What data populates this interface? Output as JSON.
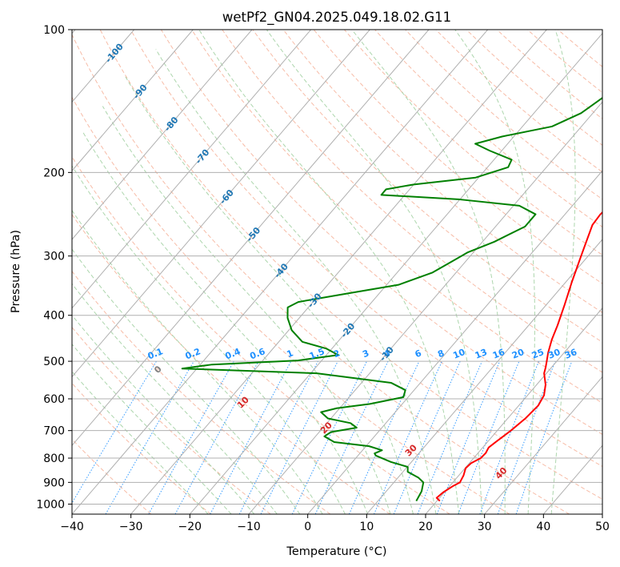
{
  "chart_data": {
    "type": "line",
    "chart_kind": "skew-T log-p diagram",
    "title": "wetPf2_GN04.2025.049.18.02.G11",
    "xlabel": "Temperature (°C)",
    "ylabel": "Pressure (hPa)",
    "xlim": [
      -40,
      50
    ],
    "ylim": [
      1050,
      100
    ],
    "y_scale": "log",
    "x_ticks": [
      -40,
      -30,
      -20,
      -10,
      0,
      10,
      20,
      30,
      40,
      50
    ],
    "y_ticks": [
      1000,
      900,
      800,
      700,
      600,
      500,
      400,
      300,
      200,
      100
    ],
    "grid": true,
    "colors": {
      "temperature": "#ff0000",
      "dewpoint": "#008000",
      "isotherm": "#b0b0b0",
      "dry_adiabat": "#f4a58a",
      "moist_adiabat": "#99cc99",
      "mixing_ratio": "#1e90ff",
      "isotherm_label": "#1f77b4",
      "dry_adiabat_label": "#d62728",
      "mixing_ratio_label": "#1e90ff",
      "lcl_label": "#808080"
    },
    "isotherm_labels": [
      "-100",
      "-90",
      "-80",
      "-70",
      "-60",
      "-50",
      "-40",
      "-30",
      "-20",
      "-10"
    ],
    "isotherm_label_values": [
      -100,
      -90,
      -80,
      -70,
      -60,
      -50,
      -40,
      -30,
      -20,
      -10
    ],
    "mixing_ratio_labels": [
      "0.1",
      "0.2",
      "0.4",
      "0.6",
      "1",
      "1.5",
      "2",
      "3",
      "4",
      "6",
      "8",
      "10",
      "13",
      "16",
      "20",
      "25",
      "30",
      "36"
    ],
    "mixing_ratio_values": [
      0.1,
      0.2,
      0.4,
      0.6,
      1,
      1.5,
      2,
      3,
      4,
      6,
      8,
      10,
      13,
      16,
      20,
      25,
      30,
      36
    ],
    "dry_adiabat_labels": [
      "0",
      "10",
      "20",
      "30",
      "40"
    ],
    "dry_adiabat_label_values": [
      0,
      10,
      20,
      30,
      40
    ],
    "series": [
      {
        "name": "Temperature",
        "points": [
          {
            "p": 985,
            "t": 20.5
          },
          {
            "p": 970,
            "t": 19.5
          },
          {
            "p": 945,
            "t": 19.8
          },
          {
            "p": 915,
            "t": 20.6
          },
          {
            "p": 900,
            "t": 21.2
          },
          {
            "p": 870,
            "t": 20.8
          },
          {
            "p": 840,
            "t": 20.1
          },
          {
            "p": 820,
            "t": 20.3
          },
          {
            "p": 800,
            "t": 21.2
          },
          {
            "p": 780,
            "t": 21.3
          },
          {
            "p": 760,
            "t": 21.0
          },
          {
            "p": 740,
            "t": 21.4
          },
          {
            "p": 700,
            "t": 22.3
          },
          {
            "p": 660,
            "t": 23.0
          },
          {
            "p": 620,
            "t": 23.3
          },
          {
            "p": 590,
            "t": 22.8
          },
          {
            "p": 560,
            "t": 21.5
          },
          {
            "p": 530,
            "t": 19.6
          },
          {
            "p": 515,
            "t": 19.0
          },
          {
            "p": 500,
            "t": 18.3
          },
          {
            "p": 480,
            "t": 17.3
          },
          {
            "p": 450,
            "t": 16.0
          },
          {
            "p": 420,
            "t": 14.9
          },
          {
            "p": 380,
            "t": 13.1
          },
          {
            "p": 340,
            "t": 11.0
          },
          {
            "p": 300,
            "t": 8.8
          },
          {
            "p": 275,
            "t": 7.3
          },
          {
            "p": 258,
            "t": 6.2
          },
          {
            "p": 245,
            "t": 6.0
          },
          {
            "p": 230,
            "t": 6.5
          },
          {
            "p": 215,
            "t": 7.6
          },
          {
            "p": 200,
            "t": 7.7
          },
          {
            "p": 185,
            "t": 8.2
          },
          {
            "p": 170,
            "t": 9.0
          },
          {
            "p": 155,
            "t": 9.5
          },
          {
            "p": 140,
            "t": 9.2
          },
          {
            "p": 125,
            "t": 9.2
          },
          {
            "p": 112,
            "t": 9.6
          },
          {
            "p": 100,
            "t": 9.3
          }
        ]
      },
      {
        "name": "Dewpoint",
        "points": [
          {
            "p": 985,
            "t": 16.5
          },
          {
            "p": 940,
            "t": 16.0
          },
          {
            "p": 900,
            "t": 15.0
          },
          {
            "p": 880,
            "t": 13.5
          },
          {
            "p": 855,
            "t": 10.8
          },
          {
            "p": 835,
            "t": 10.1
          },
          {
            "p": 815,
            "t": 6.5
          },
          {
            "p": 790,
            "t": 3.0
          },
          {
            "p": 782,
            "t": 2.5
          },
          {
            "p": 770,
            "t": 3.3
          },
          {
            "p": 755,
            "t": 0.5
          },
          {
            "p": 740,
            "t": -6.0
          },
          {
            "p": 720,
            "t": -8.5
          },
          {
            "p": 705,
            "t": -8.0
          },
          {
            "p": 690,
            "t": -4.3
          },
          {
            "p": 675,
            "t": -6.0
          },
          {
            "p": 660,
            "t": -10.5
          },
          {
            "p": 640,
            "t": -12.6
          },
          {
            "p": 628,
            "t": -10.5
          },
          {
            "p": 615,
            "t": -5.5
          },
          {
            "p": 595,
            "t": -0.8
          },
          {
            "p": 575,
            "t": -1.5
          },
          {
            "p": 555,
            "t": -5.0
          },
          {
            "p": 530,
            "t": -19.0
          },
          {
            "p": 518,
            "t": -42.5
          },
          {
            "p": 508,
            "t": -38.0
          },
          {
            "p": 498,
            "t": -24.0
          },
          {
            "p": 485,
            "t": -18.0
          },
          {
            "p": 470,
            "t": -21.0
          },
          {
            "p": 455,
            "t": -26.0
          },
          {
            "p": 430,
            "t": -29.5
          },
          {
            "p": 405,
            "t": -32.0
          },
          {
            "p": 385,
            "t": -33.5
          },
          {
            "p": 375,
            "t": -32.5
          },
          {
            "p": 360,
            "t": -25.5
          },
          {
            "p": 345,
            "t": -18.0
          },
          {
            "p": 325,
            "t": -14.0
          },
          {
            "p": 305,
            "t": -12.0
          },
          {
            "p": 295,
            "t": -11.0
          },
          {
            "p": 280,
            "t": -8.0
          },
          {
            "p": 260,
            "t": -5.0
          },
          {
            "p": 245,
            "t": -5.0
          },
          {
            "p": 235,
            "t": -9.0
          },
          {
            "p": 228,
            "t": -20.0
          },
          {
            "p": 223,
            "t": -34.0
          },
          {
            "p": 217,
            "t": -34.0
          },
          {
            "p": 212,
            "t": -30.0
          },
          {
            "p": 205,
            "t": -20.5
          },
          {
            "p": 195,
            "t": -16.5
          },
          {
            "p": 188,
            "t": -17.0
          },
          {
            "p": 180,
            "t": -22.0
          },
          {
            "p": 174,
            "t": -25.5
          },
          {
            "p": 168,
            "t": -22.0
          },
          {
            "p": 160,
            "t": -15.0
          },
          {
            "p": 150,
            "t": -12.0
          },
          {
            "p": 140,
            "t": -10.7
          },
          {
            "p": 128,
            "t": -9.0
          },
          {
            "p": 118,
            "t": -5.3
          },
          {
            "p": 108,
            "t": -3.0
          },
          {
            "p": 100,
            "t": -1.0
          }
        ]
      }
    ]
  }
}
